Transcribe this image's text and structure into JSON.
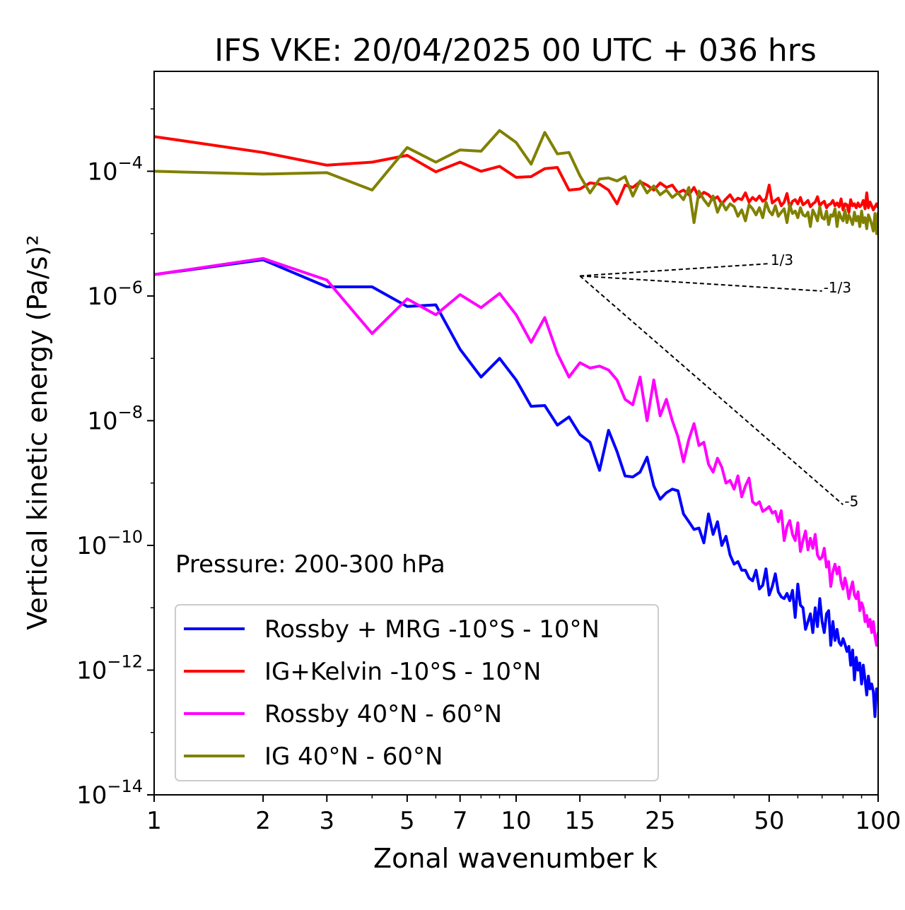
{
  "chart_data": {
    "type": "line",
    "title": "IFS VKE: 20/04/2025 00 UTC + 036 hrs",
    "xlabel": "Zonal wavenumber k",
    "ylabel": "Vertical kinetic energy (Pa/s)²",
    "x_scale": "log",
    "y_scale": "log",
    "xlim": [
      1,
      100
    ],
    "ylim": [
      1e-14,
      0.004
    ],
    "grid": false,
    "legend_position": "lower-left",
    "annotation": "Pressure: 200-300 hPa",
    "x_ticks": [
      {
        "value": 1,
        "label": "1"
      },
      {
        "value": 2,
        "label": "2"
      },
      {
        "value": 3,
        "label": "3"
      },
      {
        "value": 5,
        "label": "5"
      },
      {
        "value": 7,
        "label": "7"
      },
      {
        "value": 10,
        "label": "10"
      },
      {
        "value": 15,
        "label": "15"
      },
      {
        "value": 25,
        "label": "25"
      },
      {
        "value": 50,
        "label": "50"
      },
      {
        "value": 100,
        "label": "100"
      }
    ],
    "y_ticks": [
      {
        "value": 1e-14,
        "base": "10",
        "exponent": "−14"
      },
      {
        "value": 1e-12,
        "base": "10",
        "exponent": "−12"
      },
      {
        "value": 1e-10,
        "base": "10",
        "exponent": "−10"
      },
      {
        "value": 1e-08,
        "base": "10",
        "exponent": "−8"
      },
      {
        "value": 1e-06,
        "base": "10",
        "exponent": "−6"
      },
      {
        "value": 0.0001,
        "base": "10",
        "exponent": "−4"
      }
    ],
    "reference_slopes": [
      {
        "label": "1/3",
        "x": [
          15,
          50
        ],
        "y": [
          2.1e-06,
          3.3e-06
        ]
      },
      {
        "label": "-1/3",
        "x": [
          15,
          70
        ],
        "y": [
          2.1e-06,
          1.2e-06
        ]
      },
      {
        "label": "-5",
        "x": [
          15,
          80
        ],
        "y": [
          2.1e-06,
          4.5e-10
        ]
      }
    ],
    "series": [
      {
        "name": "Rossby + MRG -10°S - 10°N",
        "color": "#0000ff",
        "x": [
          1,
          2,
          3,
          4,
          5,
          6,
          7,
          8,
          9,
          10,
          11,
          12,
          13,
          14,
          15,
          16,
          17,
          18,
          19,
          20,
          21,
          22,
          23,
          24,
          25,
          26,
          27,
          28,
          29,
          30,
          31,
          32,
          33,
          34,
          35,
          36,
          37,
          38,
          39,
          40,
          41,
          42,
          43,
          44,
          45,
          46,
          47,
          48,
          49,
          50,
          51,
          52,
          53,
          54,
          55,
          56,
          57,
          58,
          59,
          60,
          61,
          62,
          63,
          64,
          65,
          66,
          67,
          68,
          69,
          70,
          71,
          72,
          73,
          74,
          75,
          76,
          77,
          78,
          79,
          80,
          81,
          82,
          83,
          84,
          85,
          86,
          87,
          88,
          89,
          90,
          91,
          92,
          93,
          94,
          95,
          96,
          97,
          98,
          99,
          100
        ],
        "y": [
          2.2e-06,
          3.8e-06,
          1.4e-06,
          1.4e-06,
          6.8e-07,
          7.2e-07,
          1.4e-07,
          5e-08,
          1e-07,
          4.5e-08,
          1.7e-08,
          1.75e-08,
          8.5e-09,
          1.15e-08,
          6e-09,
          4.5e-09,
          1.6e-09,
          7e-09,
          3.2e-09,
          1.3e-09,
          1.25e-09,
          1.5e-09,
          2.6e-09,
          9e-10,
          5.5e-10,
          7e-10,
          8e-10,
          7.5e-10,
          3.2e-10,
          2.4e-10,
          1.8e-10,
          1.9e-10,
          1.1e-10,
          3.2e-10,
          1.5e-10,
          2.4e-10,
          1e-10,
          1.4e-10,
          7e-11,
          5e-11,
          5.5e-11,
          4e-11,
          4e-11,
          3e-11,
          2.7e-11,
          4e-11,
          2e-11,
          2.3e-11,
          4.2e-11,
          1.6e-11,
          2.2e-11,
          3.5e-11,
          1.8e-11,
          1.5e-11,
          1.4e-11,
          1.7e-11,
          1.3e-11,
          1.9e-11,
          7e-12,
          2.4e-11,
          1.1e-11,
          1e-11,
          4.5e-12,
          6e-12,
          8e-12,
          4e-12,
          1e-11,
          5e-12,
          1.4e-11,
          6e-12,
          4e-12,
          8e-12,
          9e-12,
          2.5e-12,
          6e-12,
          3e-12,
          4.5e-12,
          2.8e-12,
          2.5e-12,
          3.2e-12,
          2.6e-12,
          2e-12,
          2.4e-12,
          1.2e-12,
          2.1e-12,
          7e-13,
          1.6e-12,
          1e-12,
          1.3e-12,
          6e-13,
          1.2e-12,
          7e-13,
          4e-13,
          8e-13,
          5e-13,
          6e-13,
          4.5e-13,
          1.8e-13,
          5e-13,
          4.5e-13
        ]
      },
      {
        "name": "IG+Kelvin -10°S - 10°N",
        "color": "#ff0000",
        "x": [
          1,
          2,
          3,
          4,
          5,
          6,
          7,
          8,
          9,
          10,
          11,
          12,
          13,
          14,
          15,
          16,
          17,
          18,
          19,
          20,
          21,
          22,
          23,
          24,
          25,
          26,
          27,
          28,
          29,
          30,
          31,
          32,
          33,
          34,
          35,
          36,
          37,
          38,
          39,
          40,
          41,
          42,
          43,
          44,
          45,
          46,
          47,
          48,
          49,
          50,
          51,
          52,
          53,
          54,
          55,
          56,
          57,
          58,
          59,
          60,
          61,
          62,
          63,
          64,
          65,
          66,
          67,
          68,
          69,
          70,
          71,
          72,
          73,
          74,
          75,
          76,
          77,
          78,
          79,
          80,
          81,
          82,
          83,
          84,
          85,
          86,
          87,
          88,
          89,
          90,
          91,
          92,
          93,
          94,
          95,
          96,
          97,
          98,
          99,
          100
        ],
        "y": [
          0.00036,
          0.0002,
          0.000125,
          0.00014,
          0.00018,
          9.8e-05,
          0.00014,
          0.0001,
          0.00012,
          8e-05,
          8.2e-05,
          0.00011,
          0.000115,
          5e-05,
          5.2e-05,
          6.5e-05,
          6.2e-05,
          5e-05,
          3e-05,
          6e-05,
          5.5e-05,
          6.8e-05,
          6e-05,
          5e-05,
          6.5e-05,
          5.5e-05,
          6e-05,
          4.5e-05,
          5e-05,
          4.2e-05,
          5.5e-05,
          3.8e-05,
          4.6e-05,
          4.2e-05,
          3.5e-05,
          3.9e-05,
          3e-05,
          3.6e-05,
          4.2e-05,
          3.3e-05,
          3.7e-05,
          3.5e-05,
          4.5e-05,
          3.2e-05,
          3.8e-05,
          3.4e-05,
          4e-05,
          3.3e-05,
          3.6e-05,
          6e-05,
          3.1e-05,
          3.4e-05,
          3.7e-05,
          2.8e-05,
          3.2e-05,
          4.4e-05,
          2.6e-05,
          3.3e-05,
          3.5e-05,
          3e-05,
          3.8e-05,
          2.9e-05,
          3.1e-05,
          3.4e-05,
          2.7e-05,
          3e-05,
          3.2e-05,
          3.9e-05,
          2.8e-05,
          3.1e-05,
          3.3e-05,
          2.6e-05,
          2.9e-05,
          3e-05,
          3.4e-05,
          2.8e-05,
          3.1e-05,
          2.7e-05,
          3.6e-05,
          2.4e-05,
          3e-05,
          2.9e-05,
          2.2e-05,
          3.5e-05,
          2.8e-05,
          3e-05,
          2.6e-05,
          3.1e-05,
          2.7e-05,
          2.9e-05,
          3.4e-05,
          2.5e-05,
          4.5e-05,
          2.6e-05,
          3.2e-05,
          2.8e-05,
          2.4e-05,
          2.7e-05,
          3e-05,
          2.6e-05
        ]
      },
      {
        "name": "Rossby 40°N - 60°N",
        "color": "#ff00ff",
        "x": [
          1,
          2,
          3,
          4,
          5,
          6,
          7,
          8,
          9,
          10,
          11,
          12,
          13,
          14,
          15,
          16,
          17,
          18,
          19,
          20,
          21,
          22,
          23,
          24,
          25,
          26,
          27,
          28,
          29,
          30,
          31,
          32,
          33,
          34,
          35,
          36,
          37,
          38,
          39,
          40,
          41,
          42,
          43,
          44,
          45,
          46,
          47,
          48,
          49,
          50,
          51,
          52,
          53,
          54,
          55,
          56,
          57,
          58,
          59,
          60,
          61,
          62,
          63,
          64,
          65,
          66,
          67,
          68,
          69,
          70,
          71,
          72,
          73,
          74,
          75,
          76,
          77,
          78,
          79,
          80,
          81,
          82,
          83,
          84,
          85,
          86,
          87,
          88,
          89,
          90,
          91,
          92,
          93,
          94,
          95,
          96,
          97,
          98,
          99,
          100
        ],
        "y": [
          2.2e-06,
          4e-06,
          1.8e-06,
          2.5e-07,
          9e-07,
          5e-07,
          1.05e-06,
          6.5e-07,
          1.1e-06,
          5e-07,
          1.8e-07,
          4.5e-07,
          1.2e-07,
          5e-08,
          8.5e-08,
          7e-08,
          7.5e-08,
          6.5e-08,
          4.5e-08,
          2.2e-08,
          1.8e-08,
          5e-08,
          1e-08,
          4.5e-08,
          1.2e-08,
          2.2e-08,
          1e-08,
          5.5e-09,
          2.2e-09,
          5e-09,
          9e-09,
          4e-09,
          4.5e-09,
          2e-09,
          1.5e-09,
          2.5e-09,
          1.8e-09,
          1e-09,
          1.1e-09,
          8e-10,
          1.3e-09,
          6e-10,
          9e-10,
          1.2e-09,
          5e-10,
          4.5e-10,
          5e-10,
          3.5e-10,
          3.8e-10,
          4.2e-10,
          3.3e-10,
          3.5e-10,
          2.4e-10,
          3.6e-10,
          1.2e-10,
          2e-10,
          2.5e-10,
          1.5e-10,
          1.2e-10,
          2.3e-10,
          8e-11,
          1.2e-10,
          1.7e-10,
          8.5e-11,
          1.3e-10,
          9e-11,
          1.5e-10,
          7e-11,
          6e-11,
          6.5e-11,
          9e-11,
          4.5e-11,
          5.5e-11,
          2.2e-11,
          3.8e-11,
          5e-11,
          3.5e-11,
          4.5e-11,
          2.6e-11,
          2e-11,
          3e-11,
          2.2e-11,
          1.4e-11,
          2e-11,
          2.6e-11,
          1.6e-11,
          1.4e-11,
          1.8e-11,
          9e-12,
          1.2e-11,
          1e-11,
          6e-12,
          7.5e-12,
          5e-12,
          6.5e-12,
          4e-12,
          6e-12,
          3.5e-12,
          2.5e-12,
          4e-12
        ]
      },
      {
        "name": "IG 40°N - 60°N",
        "color": "#808000",
        "x": [
          1,
          2,
          3,
          4,
          5,
          6,
          7,
          8,
          9,
          10,
          11,
          12,
          13,
          14,
          15,
          16,
          17,
          18,
          19,
          20,
          21,
          22,
          23,
          24,
          25,
          26,
          27,
          28,
          29,
          30,
          31,
          32,
          33,
          34,
          35,
          36,
          37,
          38,
          39,
          40,
          41,
          42,
          43,
          44,
          45,
          46,
          47,
          48,
          49,
          50,
          51,
          52,
          53,
          54,
          55,
          56,
          57,
          58,
          59,
          60,
          61,
          62,
          63,
          64,
          65,
          66,
          67,
          68,
          69,
          70,
          71,
          72,
          73,
          74,
          75,
          76,
          77,
          78,
          79,
          80,
          81,
          82,
          83,
          84,
          85,
          86,
          87,
          88,
          89,
          90,
          91,
          92,
          93,
          94,
          95,
          96,
          97,
          98,
          99,
          100
        ],
        "y": [
          0.0001,
          9e-05,
          9.5e-05,
          5e-05,
          0.00024,
          0.00014,
          0.00022,
          0.00021,
          0.00045,
          0.00029,
          0.00013,
          0.00042,
          0.00019,
          0.0002,
          8.5e-05,
          4.5e-05,
          7.5e-05,
          7.8e-05,
          7e-05,
          8.2e-05,
          4e-05,
          7e-05,
          4.5e-05,
          5.8e-05,
          4.2e-05,
          5e-05,
          3.8e-05,
          4.5e-05,
          3.5e-05,
          5.5e-05,
          1.5e-05,
          4.8e-05,
          3.5e-05,
          2.8e-05,
          4e-05,
          2.2e-05,
          3.2e-05,
          2.4e-05,
          3e-05,
          2.7e-05,
          1.9e-05,
          2.4e-05,
          1.6e-05,
          2.9e-05,
          2.5e-05,
          2e-05,
          2.6e-05,
          1.8e-05,
          3.2e-05,
          2.3e-05,
          2e-05,
          2.8e-05,
          1.9e-05,
          2.2e-05,
          2.5e-05,
          1.5e-05,
          2.9e-05,
          2.1e-05,
          2.3e-05,
          1.8e-05,
          2.6e-05,
          2e-05,
          1.9e-05,
          2.2e-05,
          1.3e-05,
          2.4e-05,
          2e-05,
          1.6e-05,
          2.7e-05,
          1.8e-05,
          1.7e-05,
          2.3e-05,
          1.4e-05,
          2e-05,
          1.9e-05,
          2.5e-05,
          1.3e-05,
          2.2e-05,
          1.8e-05,
          1.6e-05,
          2.4e-05,
          1.5e-05,
          2e-05,
          1.7e-05,
          1.4e-05,
          2.2e-05,
          1.6e-05,
          1.9e-05,
          1.3e-05,
          2.3e-05,
          1.5e-05,
          1.8e-05,
          1.2e-05,
          2e-05,
          1.7e-05,
          1.4e-05,
          1.1e-05,
          2.1e-05,
          1e-05,
          2.2e-05
        ]
      }
    ]
  }
}
